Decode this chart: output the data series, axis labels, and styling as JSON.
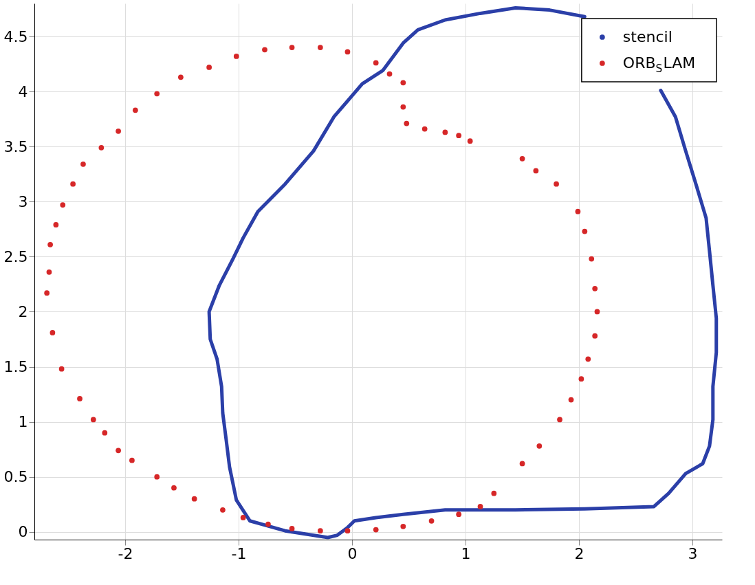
{
  "chart_data": {
    "type": "line",
    "xlim": [
      -2.8,
      3.26
    ],
    "ylim": [
      -0.07,
      4.8
    ],
    "xticks": [
      -2,
      -1,
      0,
      1,
      2,
      3
    ],
    "yticks": [
      0,
      0.5,
      1,
      1.5,
      2,
      2.5,
      3,
      3.5,
      4,
      4.5
    ],
    "grid": true,
    "legend": "top right",
    "series": [
      {
        "name": "stencil",
        "color": "#2b3fa8",
        "line_style": "solid",
        "marker": "none",
        "x": [
          -0.22,
          -0.59,
          -0.9,
          -1.02,
          -1.08,
          -1.11,
          -1.14,
          -1.15,
          -1.19,
          -1.25,
          -1.26,
          -1.17,
          -1.05,
          -0.96,
          -0.83,
          -0.59,
          -0.34,
          -0.16,
          -0.01,
          0.09,
          0.27,
          0.45,
          0.58,
          0.82,
          1.13,
          1.44,
          1.74,
          2.05,
          2.29,
          2.54,
          2.72,
          2.85,
          2.94,
          3.03,
          3.12,
          3.15,
          3.18,
          3.21,
          3.21,
          3.18,
          3.18,
          3.15,
          3.09,
          2.94,
          2.79,
          2.66,
          2.05,
          1.44,
          0.82,
          0.45,
          0.21,
          0.02,
          -0.04,
          -0.13,
          -0.21
        ],
        "values": [
          -0.05,
          0.01,
          0.1,
          0.29,
          0.59,
          0.84,
          1.08,
          1.32,
          1.57,
          1.75,
          2.0,
          2.24,
          2.48,
          2.67,
          2.91,
          3.16,
          3.46,
          3.77,
          3.95,
          4.07,
          4.19,
          4.44,
          4.56,
          4.65,
          4.71,
          4.76,
          4.74,
          4.68,
          null,
          null,
          4.01,
          3.77,
          3.46,
          3.16,
          2.85,
          2.55,
          2.24,
          1.94,
          1.63,
          1.32,
          1.02,
          0.78,
          0.62,
          0.53,
          0.35,
          0.23,
          0.21,
          0.2,
          0.2,
          0.16,
          0.13,
          0.1,
          0.04,
          -0.03,
          -0.05
        ]
      },
      {
        "name": "ORB$_{S}$LAM",
        "type": "scatter",
        "color": "#d62728",
        "marker": "circle",
        "x": [
          -0.53,
          -0.77,
          -1.02,
          -1.26,
          -1.51,
          -1.72,
          -1.91,
          -2.06,
          -2.21,
          -2.37,
          -2.46,
          -2.55,
          -2.61,
          -2.66,
          -2.67,
          -2.69,
          -2.64,
          -2.56,
          -2.4,
          -2.28,
          -2.18,
          -2.06,
          -1.94,
          -1.72,
          -1.57,
          -1.39,
          -1.14,
          -0.96,
          -0.74,
          -0.53,
          -0.28,
          -0.04,
          0.21,
          0.45,
          0.7,
          0.94,
          1.13,
          1.25,
          1.5,
          1.65,
          1.83,
          1.93,
          2.02,
          2.08,
          2.14,
          2.16,
          2.14,
          2.11,
          2.05,
          1.99,
          1.8,
          1.62,
          1.5,
          -0.28,
          -0.04,
          0.21,
          0.33,
          0.45,
          0.45,
          0.48,
          0.64,
          0.82,
          0.94,
          1.04
        ],
        "values": [
          4.4,
          4.38,
          4.32,
          4.22,
          4.13,
          3.98,
          3.83,
          3.64,
          3.49,
          3.34,
          3.16,
          2.97,
          2.79,
          2.61,
          2.36,
          2.17,
          1.81,
          1.48,
          1.21,
          1.02,
          0.9,
          0.74,
          0.65,
          0.5,
          0.4,
          0.3,
          0.2,
          0.13,
          0.07,
          0.03,
          0.01,
          0.01,
          0.02,
          0.05,
          0.1,
          0.16,
          0.23,
          0.35,
          0.62,
          0.78,
          1.02,
          1.2,
          1.39,
          1.57,
          1.78,
          2.0,
          2.21,
          2.48,
          2.73,
          2.91,
          3.16,
          3.28,
          3.39,
          4.4,
          4.36,
          4.26,
          4.16,
          4.08,
          3.86,
          3.71,
          3.66,
          3.63,
          3.6,
          3.55
        ]
      }
    ]
  }
}
